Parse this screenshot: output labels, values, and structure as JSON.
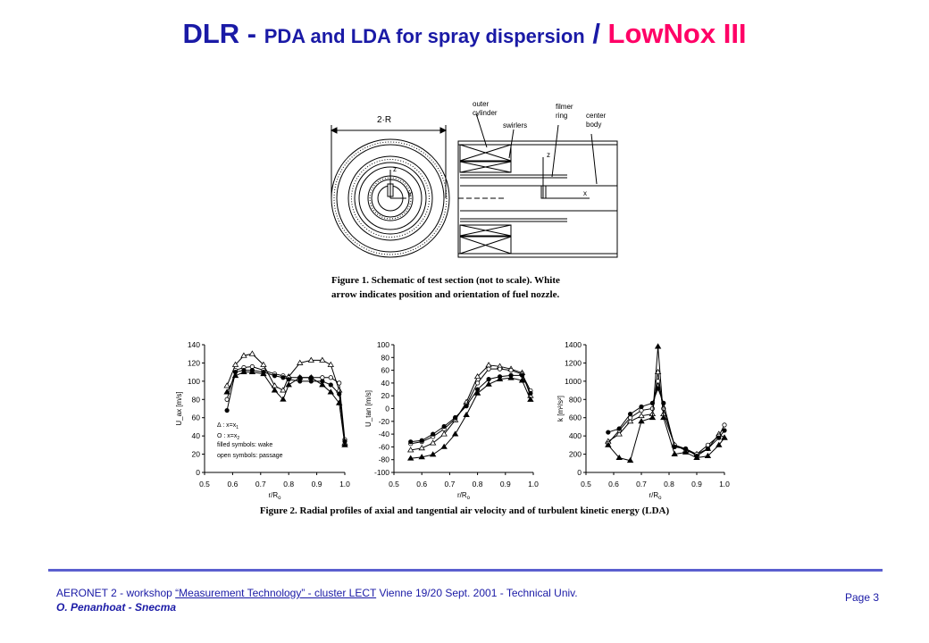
{
  "slide": {
    "title_part1": "DLR - ",
    "title_part2": "PDA and LDA for spray dispersion",
    "title_part3": " / ",
    "title_part4": "LowNox III",
    "title_accent_color": "#ff0066",
    "title_color": "#1a1aa6"
  },
  "figure1": {
    "caption_line1": "Figure 1. Schematic of test section (not to scale). White",
    "caption_line2": "arrow indicates position and orientation of fuel nozzle.",
    "labels": {
      "diameter": "2·R",
      "outer_cylinder_1": "outer",
      "outer_cylinder_2": "cylinder",
      "swirlers": "swirlers",
      "filmer_1": "filmer",
      "filmer_2": "ring",
      "center_1": "center",
      "center_2": "body",
      "axis_z": "z",
      "axis_y": "y",
      "axis_x": "x"
    }
  },
  "figure2": {
    "caption": "Figure 2. Radial profiles of axial and tangential air velocity and of turbulent kinetic energy (LDA)",
    "legend": {
      "l1": "Δ : x=x",
      "l1_sub": "1",
      "l2": "O : x=x",
      "l2_sub": "2",
      "l3": "filled symbols: wake",
      "l4": "open symbols: passage"
    }
  },
  "chart_data": [
    {
      "type": "line",
      "ylabel": "U_ax [m/s]",
      "xlabel": "r/R",
      "xlabel_sub": "o",
      "xlim": [
        0.5,
        1.0
      ],
      "ylim": [
        0,
        140
      ],
      "xticks": [
        "0.5",
        "0.6",
        "0.7",
        "0.8",
        "0.9",
        "1.0"
      ],
      "yticks": [
        "0",
        "20",
        "40",
        "60",
        "80",
        "100",
        "120",
        "140"
      ],
      "x": [
        0.58,
        0.61,
        0.64,
        0.67,
        0.71,
        0.75,
        0.78,
        0.8,
        0.84,
        0.88,
        0.92,
        0.95,
        0.98,
        1.0
      ],
      "series": [
        {
          "marker": "triangle-open",
          "values": [
            95,
            118,
            128,
            130,
            118,
            95,
            90,
            105,
            120,
            123,
            123,
            118,
            90,
            32
          ]
        },
        {
          "marker": "circle-open",
          "values": [
            80,
            112,
            115,
            116,
            112,
            108,
            106,
            104,
            104,
            104,
            104,
            104,
            98,
            36
          ]
        },
        {
          "marker": "circle-filled",
          "values": [
            68,
            110,
            112,
            112,
            110,
            106,
            104,
            102,
            100,
            100,
            100,
            96,
            86,
            34
          ]
        },
        {
          "marker": "triangle-filled",
          "values": [
            88,
            106,
            110,
            110,
            108,
            90,
            80,
            96,
            104,
            104,
            96,
            88,
            76,
            30
          ]
        }
      ]
    },
    {
      "type": "line",
      "ylabel": "U_tan [m/s]",
      "xlabel": "r/R",
      "xlabel_sub": "o",
      "xlim": [
        0.5,
        1.0
      ],
      "ylim": [
        -100,
        100
      ],
      "xticks": [
        "0.5",
        "0.6",
        "0.7",
        "0.8",
        "0.9",
        "1.0"
      ],
      "yticks": [
        "-100",
        "-80",
        "-60",
        "-40",
        "-20",
        "0",
        "20",
        "40",
        "60",
        "80",
        "100"
      ],
      "x": [
        0.56,
        0.6,
        0.64,
        0.68,
        0.72,
        0.76,
        0.8,
        0.84,
        0.88,
        0.92,
        0.96,
        0.99
      ],
      "series": [
        {
          "marker": "triangle-open",
          "values": [
            -65,
            -62,
            -54,
            -40,
            -18,
            10,
            50,
            68,
            66,
            62,
            56,
            20
          ]
        },
        {
          "marker": "circle-open",
          "values": [
            -55,
            -52,
            -44,
            -32,
            -16,
            6,
            40,
            62,
            62,
            60,
            54,
            28
          ]
        },
        {
          "marker": "circle-filled",
          "values": [
            -52,
            -50,
            -40,
            -28,
            -14,
            4,
            30,
            46,
            50,
            52,
            52,
            24
          ]
        },
        {
          "marker": "triangle-filled",
          "values": [
            -78,
            -76,
            -72,
            -60,
            -40,
            -10,
            24,
            38,
            46,
            48,
            44,
            14
          ]
        }
      ]
    },
    {
      "type": "line",
      "ylabel": "k [m²/s²]",
      "xlabel": "r/R",
      "xlabel_sub": "o",
      "xlim": [
        0.5,
        1.0
      ],
      "ylim": [
        0,
        1400
      ],
      "xticks": [
        "0.5",
        "0.6",
        "0.7",
        "0.8",
        "0.9",
        "1.0"
      ],
      "yticks": [
        "0",
        "200",
        "400",
        "600",
        "800",
        "1000",
        "1200",
        "1400"
      ],
      "x": [
        0.58,
        0.62,
        0.66,
        0.7,
        0.74,
        0.76,
        0.78,
        0.82,
        0.86,
        0.9,
        0.94,
        0.98,
        1.0
      ],
      "series": [
        {
          "marker": "triangle-open",
          "values": [
            340,
            420,
            560,
            620,
            640,
            1100,
            640,
            300,
            240,
            200,
            260,
            420,
            380
          ]
        },
        {
          "marker": "circle-open",
          "values": [
            320,
            460,
            600,
            680,
            700,
            1000,
            700,
            300,
            260,
            200,
            300,
            400,
            520
          ]
        },
        {
          "marker": "circle-filled",
          "values": [
            440,
            480,
            640,
            720,
            760,
            920,
            760,
            280,
            260,
            180,
            260,
            380,
            460
          ]
        },
        {
          "marker": "triangle-filled",
          "values": [
            300,
            160,
            130,
            560,
            600,
            1380,
            600,
            200,
            220,
            160,
            180,
            300,
            380
          ]
        }
      ]
    }
  ],
  "footer": {
    "line1_a": "AERONET 2  - workshop ",
    "line1_b": "“Measurement Technology”  - cluster LECT",
    "line1_c": "  Vienne 19/20 Sept. 2001 - Technical Univ.",
    "line2": "O. Penanhoat - Snecma",
    "page": "Page 3"
  }
}
